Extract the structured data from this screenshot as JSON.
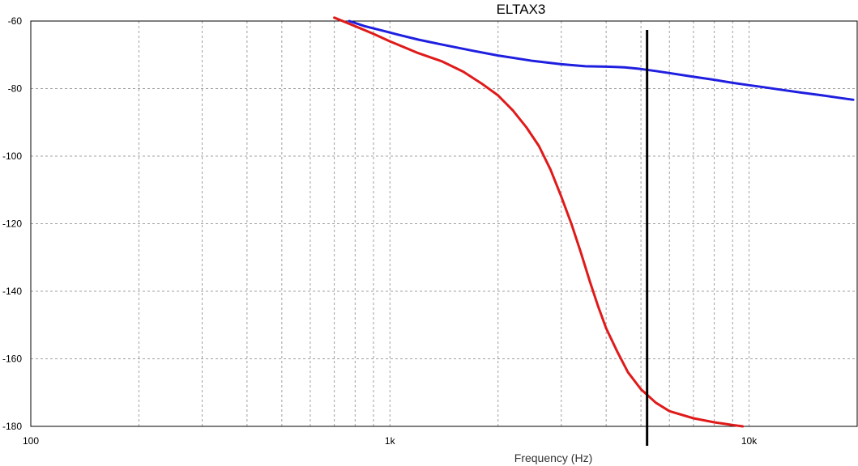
{
  "chart_data": {
    "type": "line",
    "title": "ELTAX3",
    "xlabel": "Frequency (Hz)",
    "ylabel": "",
    "xscale": "log",
    "xlim": [
      100,
      20000
    ],
    "ylim": [
      -180,
      -60
    ],
    "grid": true,
    "x_tick_labels": [
      {
        "value": 100,
        "label": "100"
      },
      {
        "value": 1000,
        "label": "1k"
      },
      {
        "value": 10000,
        "label": "10k"
      }
    ],
    "y_tick_labels": [
      {
        "value": -60,
        "label": "-60"
      },
      {
        "value": -80,
        "label": "-80"
      },
      {
        "value": -100,
        "label": "-100"
      },
      {
        "value": -120,
        "label": "-120"
      },
      {
        "value": -140,
        "label": "-140"
      },
      {
        "value": -160,
        "label": "-160"
      },
      {
        "value": -180,
        "label": "-180"
      }
    ],
    "series": [
      {
        "color": "#1f1fe0",
        "points": [
          [
            770,
            -60
          ],
          [
            850,
            -61.5
          ],
          [
            950,
            -62.8
          ],
          [
            1050,
            -64
          ],
          [
            1200,
            -65.5
          ],
          [
            1400,
            -67
          ],
          [
            1700,
            -68.8
          ],
          [
            2000,
            -70.2
          ],
          [
            2500,
            -71.8
          ],
          [
            3000,
            -72.8
          ],
          [
            3500,
            -73.4
          ],
          [
            4000,
            -73.5
          ],
          [
            4500,
            -73.7
          ],
          [
            5000,
            -74.2
          ],
          [
            5500,
            -74.8
          ],
          [
            6000,
            -75.4
          ],
          [
            7000,
            -76.5
          ],
          [
            8000,
            -77.4
          ],
          [
            9000,
            -78.3
          ],
          [
            10000,
            -79
          ],
          [
            11000,
            -79.6
          ],
          [
            12000,
            -80.2
          ],
          [
            14000,
            -81.2
          ],
          [
            16000,
            -82
          ],
          [
            18000,
            -82.8
          ],
          [
            19500,
            -83.3
          ]
        ]
      },
      {
        "color": "#e01a1a",
        "points": [
          [
            700,
            -59
          ],
          [
            800,
            -61.5
          ],
          [
            900,
            -63.8
          ],
          [
            1000,
            -66
          ],
          [
            1200,
            -69.5
          ],
          [
            1400,
            -72
          ],
          [
            1600,
            -75
          ],
          [
            1800,
            -78.5
          ],
          [
            2000,
            -82
          ],
          [
            2200,
            -86.5
          ],
          [
            2400,
            -91.5
          ],
          [
            2600,
            -97
          ],
          [
            2800,
            -104
          ],
          [
            3000,
            -112
          ],
          [
            3200,
            -120
          ],
          [
            3400,
            -128.5
          ],
          [
            3600,
            -137
          ],
          [
            3800,
            -144.5
          ],
          [
            4000,
            -151
          ],
          [
            4300,
            -158
          ],
          [
            4600,
            -164
          ],
          [
            5000,
            -169
          ],
          [
            5500,
            -173
          ],
          [
            6000,
            -175.5
          ],
          [
            7000,
            -177.6
          ],
          [
            8000,
            -178.8
          ],
          [
            9000,
            -179.6
          ],
          [
            9600,
            -180
          ]
        ]
      }
    ],
    "cursor": {
      "x": 5200,
      "color": "#000000"
    }
  }
}
